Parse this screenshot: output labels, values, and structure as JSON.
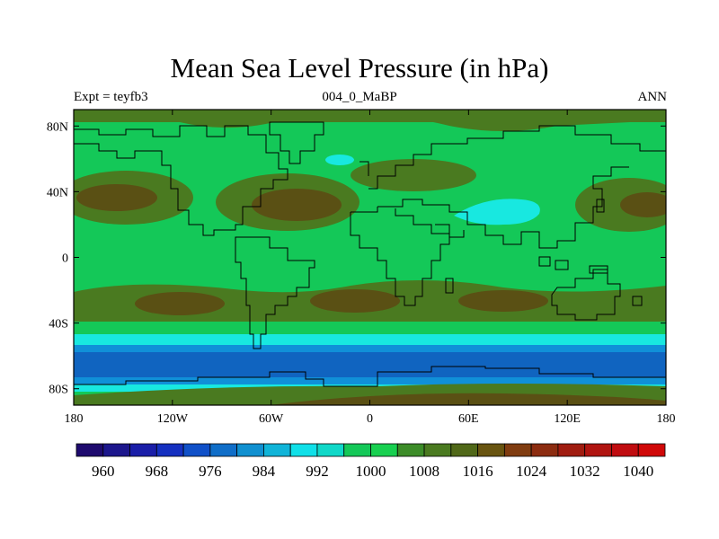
{
  "title": "Mean Sea Level Pressure (in hPa)",
  "subtitle_left": "Expt = teyfb3",
  "subtitle_center": "004_0_MaBP",
  "subtitle_right": "ANN",
  "x_ticks": [
    "180",
    "120W",
    "60W",
    "0",
    "60E",
    "120E",
    "180"
  ],
  "y_ticks": [
    "80N",
    "40N",
    "0",
    "40S",
    "80S"
  ],
  "colorbar": {
    "labels": [
      "960",
      "968",
      "976",
      "984",
      "992",
      "1000",
      "1008",
      "1016",
      "1024",
      "1032",
      "1040"
    ],
    "colors": [
      "#1e0a6e",
      "#1c168c",
      "#1a1ea8",
      "#1530c0",
      "#1050c8",
      "#106ec8",
      "#1090d0",
      "#10b4d8",
      "#10e0e8",
      "#10d8c8",
      "#14c858",
      "#18d050",
      "#3c8c28",
      "#4a7a20",
      "#506818",
      "#685410",
      "#803c10",
      "#8c2c10",
      "#a01c10",
      "#b01410",
      "#c00c10",
      "#d00808"
    ]
  },
  "map_colors": {
    "ocean_low": "#1064c0",
    "ocean_mid": "#1090d8",
    "cyan": "#18e8e0",
    "green": "#14c858",
    "olive": "#4a7a20",
    "brown": "#5a5014"
  }
}
